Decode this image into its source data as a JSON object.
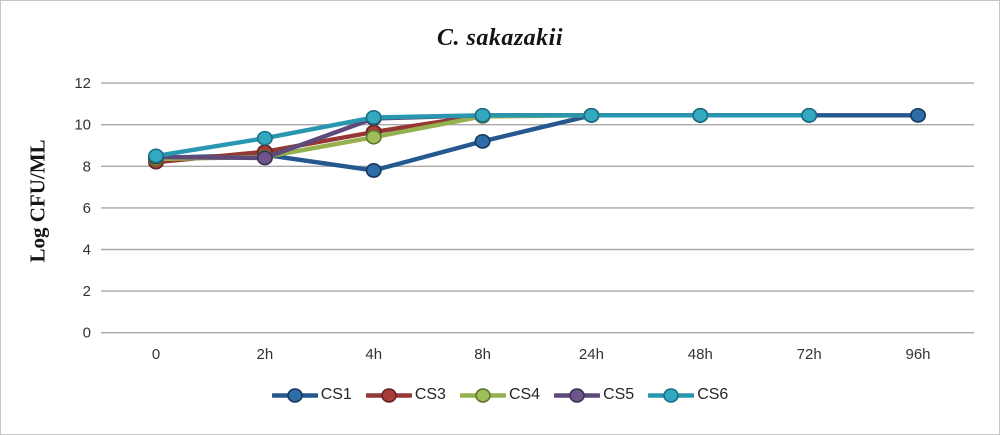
{
  "chart_data": {
    "type": "line",
    "title": "C. sakazakii",
    "ylabel": "Log CFU/ML",
    "xlabel": "",
    "categories": [
      "0",
      "2h",
      "4h",
      "8h",
      "24h",
      "48h",
      "72h",
      "96h"
    ],
    "yticks": [
      0,
      2,
      4,
      6,
      8,
      10,
      12
    ],
    "ylim": [
      0,
      12
    ],
    "grid": true,
    "gridline_color": "#a9a9a9",
    "legend_position": "bottom",
    "series": [
      {
        "name": "CS1",
        "color": "#24588f",
        "marker_fill": "#2e6da8",
        "marker_edge": "#17375e",
        "values": [
          8.4,
          8.55,
          7.8,
          9.2,
          10.45,
          10.45,
          10.45,
          10.45
        ]
      },
      {
        "name": "CS3",
        "color": "#953735",
        "marker_fill": "#a83c3a",
        "marker_edge": "#632423",
        "values": [
          8.2,
          8.7,
          9.65,
          10.45,
          10.45,
          10.45,
          10.45,
          null
        ]
      },
      {
        "name": "CS4",
        "color": "#94b04f",
        "marker_fill": "#9fbe59",
        "marker_edge": "#5e7530",
        "values": [
          8.35,
          8.45,
          9.4,
          10.4,
          10.45,
          10.45,
          10.45,
          null
        ]
      },
      {
        "name": "CS5",
        "color": "#5f497a",
        "marker_fill": "#6e558d",
        "marker_edge": "#3f3151",
        "values": [
          8.45,
          8.4,
          10.3,
          10.45,
          10.45,
          10.45,
          10.45,
          null
        ]
      },
      {
        "name": "CS6",
        "color": "#2897af",
        "marker_fill": "#33a9c0",
        "marker_edge": "#1a7086",
        "values": [
          8.5,
          9.35,
          10.35,
          10.45,
          10.45,
          10.45,
          10.45,
          null
        ]
      }
    ]
  }
}
